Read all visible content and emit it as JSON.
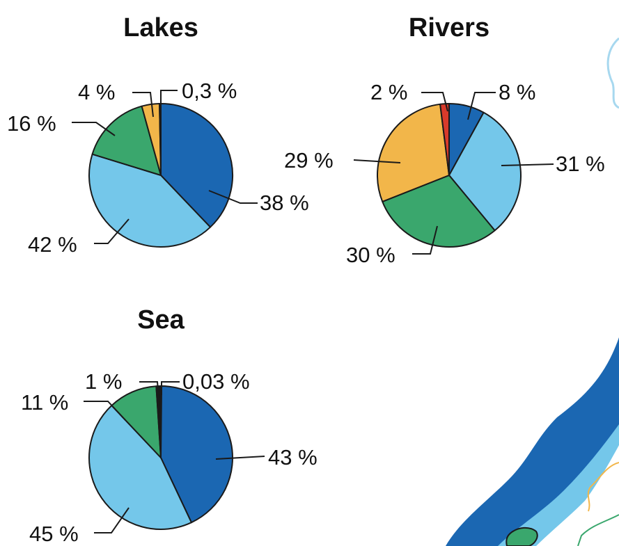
{
  "colors": {
    "dark_blue": "#1b67b2",
    "light_blue": "#74c7ea",
    "green": "#3aa76d",
    "orange": "#f2b64a",
    "red": "#d93a2b",
    "outline": "#1a1a1a",
    "map_land_lines": "#a7d8ef"
  },
  "chart_data": [
    {
      "type": "pie",
      "title": "Lakes",
      "start_angle": 0,
      "slices": [
        {
          "value": 38,
          "label": "38 %",
          "color": "#1b67b2"
        },
        {
          "value": 42,
          "label": "42 %",
          "color": "#74c7ea"
        },
        {
          "value": 16,
          "label": "16 %",
          "color": "#3aa76d"
        },
        {
          "value": 4,
          "label": "4 %",
          "color": "#f2b64a"
        },
        {
          "value": 0.3,
          "label": "0,3 %",
          "color": "#d93a2b"
        }
      ]
    },
    {
      "type": "pie",
      "title": "Rivers",
      "start_angle": 0,
      "slices": [
        {
          "value": 8,
          "label": "8 %",
          "color": "#1b67b2"
        },
        {
          "value": 31,
          "label": "31 %",
          "color": "#74c7ea"
        },
        {
          "value": 30,
          "label": "30 %",
          "color": "#3aa76d"
        },
        {
          "value": 29,
          "label": "29 %",
          "color": "#f2b64a"
        },
        {
          "value": 2,
          "label": "2 %",
          "color": "#d93a2b"
        }
      ]
    },
    {
      "type": "pie",
      "title": "Sea",
      "start_angle": 0,
      "slices": [
        {
          "value": 43,
          "label": "43 %",
          "color": "#1b67b2"
        },
        {
          "value": 45,
          "label": "45 %",
          "color": "#74c7ea"
        },
        {
          "value": 11,
          "label": "11 %",
          "color": "#3aa76d"
        },
        {
          "value": 1,
          "label": "1 %",
          "color": "#1a1a1a"
        },
        {
          "value": 0.03,
          "label": "0,03 %",
          "color": "#f2b64a"
        }
      ]
    }
  ]
}
